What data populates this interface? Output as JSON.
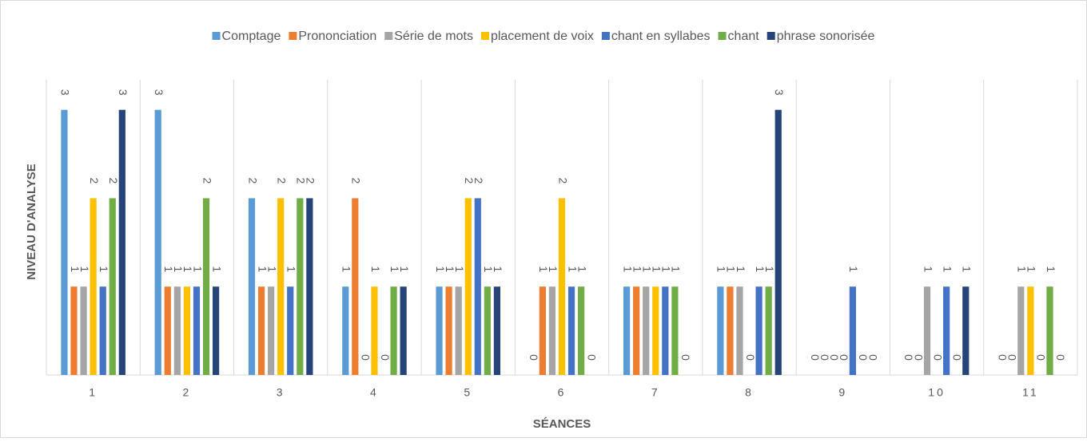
{
  "chart_data": {
    "type": "bar",
    "x_label": "SÉANCES",
    "y_label": "NIVEAU D'ANALYSE",
    "categories": [
      "1",
      "2",
      "3",
      "4",
      "5",
      "6",
      "7",
      "8",
      "9",
      "10",
      "11"
    ],
    "ylim": [
      0,
      3.34
    ],
    "grid": true,
    "legend": "top",
    "series": [
      {
        "name": "Comptage",
        "color": "#5b9bd5",
        "values": [
          3,
          3,
          2,
          1,
          1,
          0,
          1,
          1,
          0,
          0,
          0
        ]
      },
      {
        "name": "Prononciation",
        "color": "#ed7d31",
        "values": [
          1,
          1,
          1,
          2,
          1,
          1,
          1,
          1,
          0,
          0,
          0
        ]
      },
      {
        "name": "Série de mots",
        "color": "#a5a5a5",
        "values": [
          1,
          1,
          1,
          0,
          1,
          1,
          1,
          1,
          0,
          1,
          1
        ]
      },
      {
        "name": "placement de voix",
        "color": "#ffc000",
        "values": [
          2,
          1,
          2,
          1,
          2,
          2,
          1,
          0,
          0,
          0,
          1
        ]
      },
      {
        "name": "chant en syllabes",
        "color": "#4472c4",
        "values": [
          1,
          1,
          1,
          0,
          2,
          1,
          1,
          1,
          1,
          1,
          0
        ]
      },
      {
        "name": "chant",
        "color": "#70ad47",
        "values": [
          2,
          2,
          2,
          1,
          1,
          1,
          1,
          1,
          0,
          0,
          1
        ]
      },
      {
        "name": "phrase sonorisée",
        "color": "#264478",
        "values": [
          3,
          1,
          2,
          1,
          1,
          0,
          0,
          3,
          0,
          1,
          0
        ]
      }
    ]
  }
}
